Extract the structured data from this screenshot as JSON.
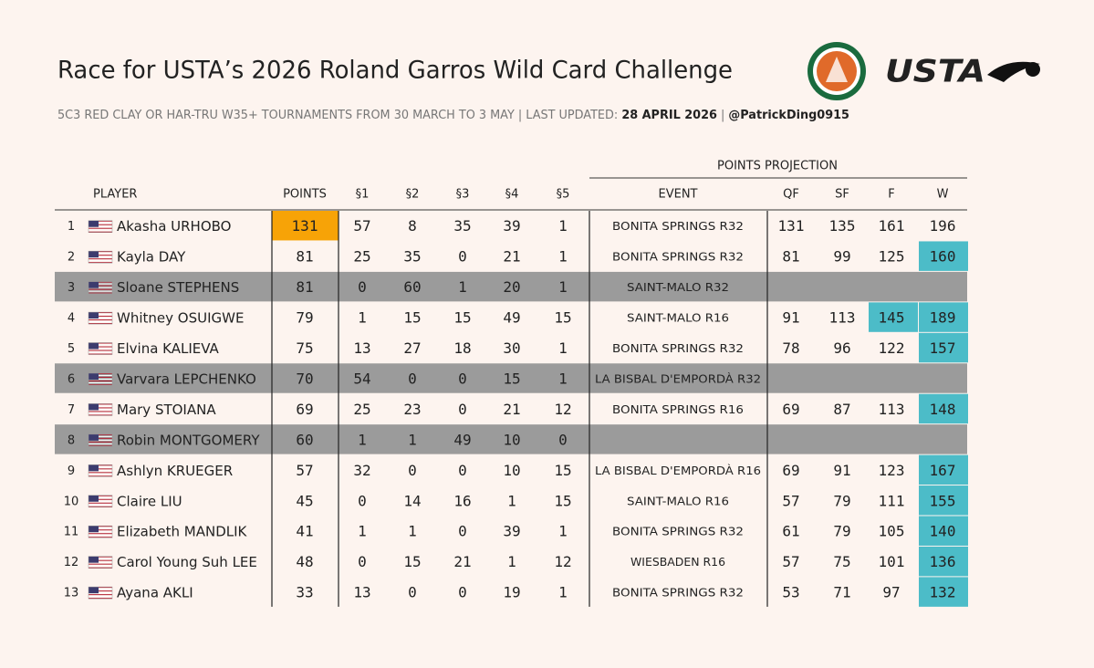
{
  "header": {
    "title": "Race for USTA’s 2026 Roland Garros Wild Card Challenge",
    "subtitle": [
      "5C3 RED CLAY OR HAR-TRU W35+ TOURNAMENTS FROM 30 MARCH TO 3 MAY | LAST UPDATED:",
      "28 APRIL 2026",
      "|",
      "@PatrickDing0915"
    ],
    "logo_text": "USTA"
  },
  "table": {
    "group_header": "POINTS PROJECTION",
    "columns": [
      "PLAYER",
      "POINTS",
      "§1",
      "§2",
      "§3",
      "§4",
      "§5",
      "EVENT",
      "QF",
      "SF",
      "F",
      "W"
    ],
    "colors": {
      "points_highlight": "#f7a307",
      "projection_highlight": "#4cbcc8",
      "eliminated": "#9b9b9b"
    },
    "rows": [
      {
        "rank": 1,
        "player": "Akasha URHOBO",
        "points": 131,
        "sections": [
          57,
          8,
          35,
          39,
          1
        ],
        "event": "BONITA SPRINGS R32",
        "projection": [
          131,
          135,
          161,
          196
        ],
        "eliminated": false,
        "highlight": [
          "points"
        ]
      },
      {
        "rank": 2,
        "player": "Kayla DAY",
        "points": 81,
        "sections": [
          25,
          35,
          0,
          21,
          1
        ],
        "event": "BONITA SPRINGS R32",
        "projection": [
          81,
          99,
          125,
          160
        ],
        "eliminated": false,
        "highlight": [
          "projection.3"
        ]
      },
      {
        "rank": 3,
        "player": "Sloane STEPHENS",
        "points": 81,
        "sections": [
          0,
          60,
          1,
          20,
          1
        ],
        "event": "SAINT-MALO R32",
        "eliminated": true,
        "highlight": []
      },
      {
        "rank": 4,
        "player": "Whitney OSUIGWE",
        "points": 79,
        "sections": [
          1,
          15,
          15,
          49,
          15
        ],
        "event": "SAINT-MALO R16",
        "projection": [
          91,
          113,
          145,
          189
        ],
        "eliminated": false,
        "highlight": [
          "projection.2",
          "projection.3"
        ]
      },
      {
        "rank": 5,
        "player": "Elvina KALIEVA",
        "points": 75,
        "sections": [
          13,
          27,
          18,
          30,
          1
        ],
        "event": "BONITA SPRINGS R32",
        "projection": [
          78,
          96,
          122,
          157
        ],
        "eliminated": false,
        "highlight": [
          "projection.3"
        ]
      },
      {
        "rank": 6,
        "player": "Varvara LEPCHENKO",
        "points": 70,
        "sections": [
          54,
          0,
          0,
          15,
          1
        ],
        "event": "LA BISBAL D'EMPORDÀ R32",
        "eliminated": true,
        "highlight": []
      },
      {
        "rank": 7,
        "player": "Mary STOIANA",
        "points": 69,
        "sections": [
          25,
          23,
          0,
          21,
          12
        ],
        "event": "BONITA SPRINGS R16",
        "projection": [
          69,
          87,
          113,
          148
        ],
        "eliminated": false,
        "highlight": [
          "projection.3"
        ]
      },
      {
        "rank": 8,
        "player": "Robin MONTGOMERY",
        "points": 60,
        "sections": [
          1,
          1,
          49,
          10,
          0
        ],
        "eliminated": true,
        "highlight": []
      },
      {
        "rank": 9,
        "player": "Ashlyn KRUEGER",
        "points": 57,
        "sections": [
          32,
          0,
          0,
          10,
          15
        ],
        "event": "LA BISBAL D'EMPORDÀ R16",
        "projection": [
          69,
          91,
          123,
          167
        ],
        "eliminated": false,
        "highlight": [
          "projection.3"
        ]
      },
      {
        "rank": 10,
        "player": "Claire LIU",
        "points": 45,
        "sections": [
          0,
          14,
          16,
          1,
          15
        ],
        "event": "SAINT-MALO R16",
        "projection": [
          57,
          79,
          111,
          155
        ],
        "eliminated": false,
        "highlight": [
          "projection.3"
        ]
      },
      {
        "rank": 11,
        "player": "Elizabeth MANDLIK",
        "points": 41,
        "sections": [
          1,
          1,
          0,
          39,
          1
        ],
        "event": "BONITA SPRINGS R32",
        "projection": [
          61,
          79,
          105,
          140
        ],
        "eliminated": false,
        "highlight": [
          "projection.3"
        ]
      },
      {
        "rank": 12,
        "player": "Carol Young Suh LEE",
        "points": 48,
        "sections": [
          0,
          15,
          21,
          1,
          12
        ],
        "event": "WIESBADEN R16",
        "projection": [
          57,
          75,
          101,
          136
        ],
        "eliminated": false,
        "highlight": [
          "projection.3"
        ]
      },
      {
        "rank": 13,
        "player": "Ayana AKLI",
        "points": 33,
        "sections": [
          13,
          0,
          0,
          19,
          1
        ],
        "event": "BONITA SPRINGS R32",
        "projection": [
          53,
          71,
          97,
          132
        ],
        "eliminated": false,
        "highlight": [
          "projection.3"
        ]
      }
    ]
  }
}
